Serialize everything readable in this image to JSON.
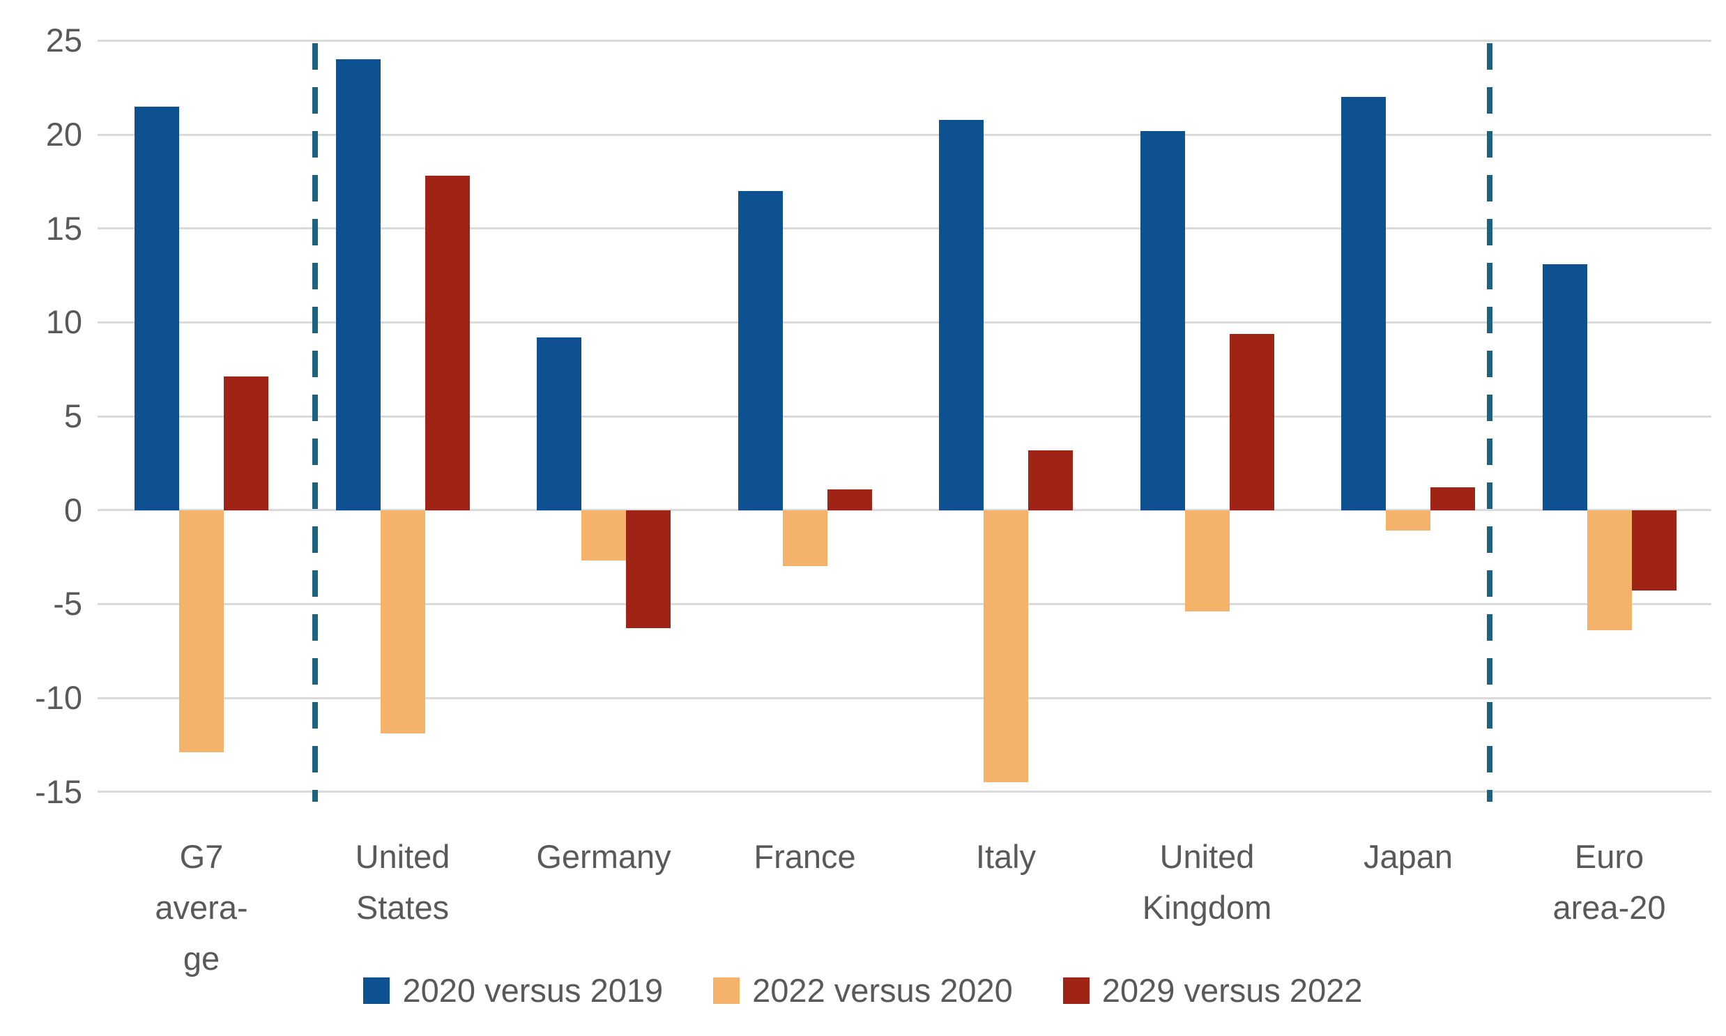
{
  "chart_data": {
    "type": "bar",
    "title": "",
    "xlabel": "",
    "ylabel": "",
    "categories": [
      "G7 avera-ge",
      "United States",
      "Germany",
      "France",
      "Italy",
      "United Kingdom",
      "Japan",
      "Euro area-20"
    ],
    "category_lines": [
      [
        "G7",
        "avera-",
        "ge"
      ],
      [
        "United",
        "States"
      ],
      [
        "Germany"
      ],
      [
        "France"
      ],
      [
        "Italy"
      ],
      [
        "United",
        "Kingdom"
      ],
      [
        "Japan"
      ],
      [
        "Euro",
        "area-20"
      ]
    ],
    "series": [
      {
        "name": "2020 versus 2019",
        "color": "#0d5191",
        "values": [
          21.5,
          24.0,
          9.2,
          17.0,
          20.8,
          20.2,
          22.0,
          13.1
        ]
      },
      {
        "name": "2022 versus 2020",
        "color": "#f5b26b",
        "values": [
          -12.9,
          -11.9,
          -2.7,
          -3.0,
          -14.5,
          -5.4,
          -1.1,
          -6.4
        ]
      },
      {
        "name": "2029 versus 2022",
        "color": "#a02416",
        "values": [
          7.1,
          17.8,
          -6.3,
          1.1,
          3.2,
          9.4,
          1.2,
          -4.3
        ]
      }
    ],
    "yticks": [
      25,
      20,
      15,
      10,
      5,
      0,
      -5,
      -10,
      -15
    ],
    "ylim": [
      -15,
      25
    ],
    "grid": true,
    "legend_position": "bottom",
    "separators_after_category_index": [
      0,
      6
    ],
    "colors": {
      "grid": "#dadada",
      "axis_text": "#595959",
      "separator": "#1d627f",
      "background": "#ffffff"
    }
  }
}
